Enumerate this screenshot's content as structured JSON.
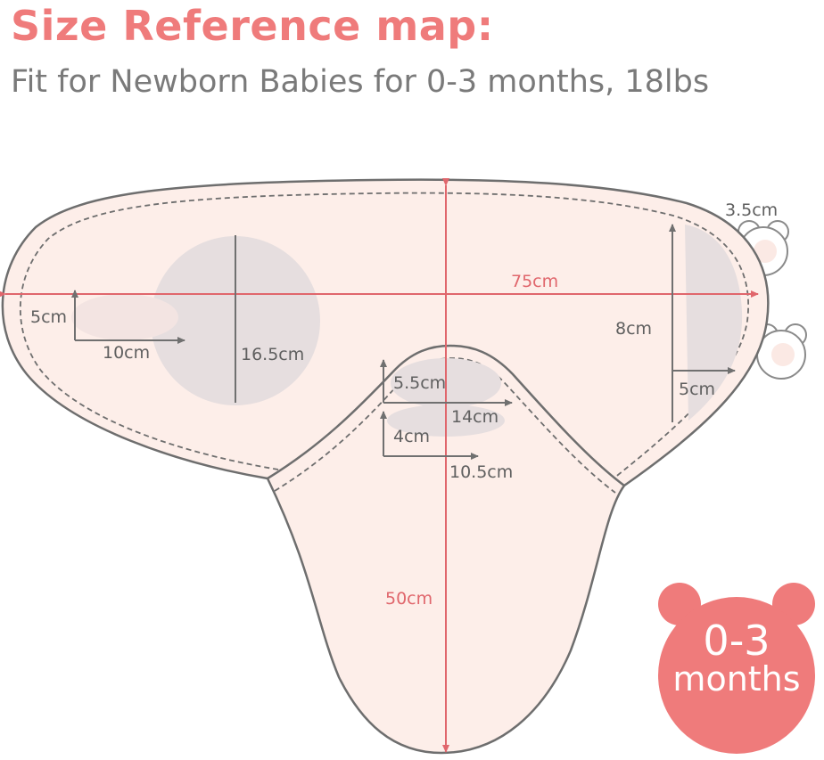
{
  "header": {
    "title": "Size Reference map:",
    "subtitle": "Fit for Newborn Babies for 0-3 months, 18lbs"
  },
  "measurements": {
    "width_total": "75cm",
    "length_total": "50cm",
    "head_circle": "16.5cm",
    "left_horizontal": "10cm",
    "left_vertical": "5cm",
    "neck_top_vertical": "5.5cm",
    "neck_top_horizontal": "14cm",
    "neck_bottom_vertical": "4cm",
    "neck_bottom_horizontal": "10.5cm",
    "ear_size": "3.5cm",
    "right_vertical": "8cm",
    "right_horizontal": "5cm"
  },
  "badge": {
    "range": "0-3",
    "unit": "months"
  },
  "colors": {
    "accent": "#ef7b7b",
    "fabric": "#fdeee9",
    "outline": "#6e6e6e",
    "patch": "#e6dedf",
    "measure_line": "#e0666c"
  }
}
